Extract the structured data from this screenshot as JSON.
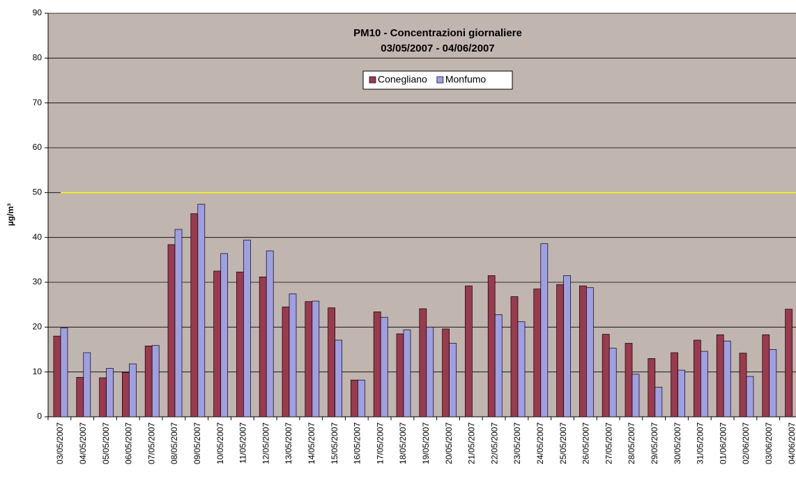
{
  "chart_data": {
    "type": "bar",
    "title": "PM10 - Concentrazioni giornaliere",
    "subtitle": "03/05/2007 - 04/06/2007",
    "y_label": "µg/m³",
    "categories": [
      "03/05/2007",
      "04/05/2007",
      "05/05/2007",
      "06/05/2007",
      "07/05/2007",
      "08/05/2007",
      "09/05/2007",
      "10/05/2007",
      "11/05/2007",
      "12/05/2007",
      "13/05/2007",
      "14/05/2007",
      "15/05/2007",
      "16/05/2007",
      "17/05/2007",
      "18/05/2007",
      "19/05/2007",
      "20/05/2007",
      "21/05/2007",
      "22/05/2007",
      "23/05/2007",
      "24/05/2007",
      "25/05/2007",
      "26/05/2007",
      "27/05/2007",
      "28/05/2007",
      "29/05/2007",
      "30/05/2007",
      "31/05/2007",
      "01/06/2007",
      "02/06/2007",
      "03/06/2007",
      "04/06/2007"
    ],
    "series": [
      {
        "name": "Conegliano",
        "color": "#9b3a4d",
        "values": [
          18,
          8.8,
          8.7,
          9.9,
          15.8,
          38.4,
          45.3,
          32.5,
          32.3,
          31.2,
          24.5,
          25.7,
          24.3,
          8.2,
          23.4,
          18.5,
          24.1,
          19.6,
          29.2,
          31.5,
          26.8,
          28.5,
          29.5,
          29.2,
          18.4,
          16.4,
          13,
          14.3,
          17.1,
          18.3,
          14.2,
          18.3,
          24
        ]
      },
      {
        "name": "Monfumo",
        "color": "#9f9fe3",
        "values": [
          19.8,
          14.3,
          10.8,
          11.8,
          15.9,
          41.8,
          47.4,
          36.4,
          39.4,
          37,
          27.4,
          25.8,
          17.1,
          8.2,
          22.2,
          19.4,
          20,
          16.4,
          null,
          22.8,
          21.2,
          38.6,
          31.5,
          28.8,
          15.3,
          9.5,
          6.6,
          10.4,
          14.6,
          16.9,
          9,
          15,
          null
        ]
      }
    ],
    "limit": 50,
    "limit_color": "#ffff00",
    "ylim": [
      0,
      90
    ],
    "yticks": [
      0,
      10,
      20,
      30,
      40,
      50,
      60,
      70,
      80,
      90
    ],
    "grid": true,
    "plot_background": "#c1b5b0",
    "legend_position": "top"
  }
}
